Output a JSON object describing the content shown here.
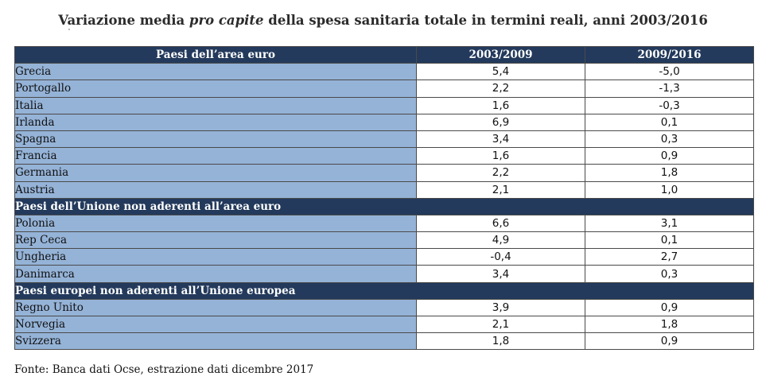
{
  "title": {
    "part1": "Variazione media ",
    "italic": "pro capite",
    "part2": " della spesa sanitaria totale in termini reali, anni 2003/2016"
  },
  "header": {
    "col1": "Paesi dell’area euro",
    "col2": "2003/2009",
    "col3": "2009/2016"
  },
  "groups": [
    {
      "label": "",
      "rows": [
        {
          "country": "Grecia",
          "v1": "5,4",
          "v2": "-5,0"
        },
        {
          "country": "Portogallo",
          "v1": "2,2",
          "v2": "-1,3"
        },
        {
          "country": "Italia",
          "v1": "1,6",
          "v2": "-0,3"
        },
        {
          "country": "Irlanda",
          "v1": "6,9",
          "v2": "0,1"
        },
        {
          "country": "Spagna",
          "v1": "3,4",
          "v2": "0,3"
        },
        {
          "country": "Francia",
          "v1": "1,6",
          "v2": "0,9"
        },
        {
          "country": "Germania",
          "v1": "2,2",
          "v2": "1,8"
        },
        {
          "country": "Austria",
          "v1": "2,1",
          "v2": "1,0"
        }
      ]
    },
    {
      "label": "Paesi dell’Unione non aderenti all’area euro",
      "rows": [
        {
          "country": "Polonia",
          "v1": "6,6",
          "v2": "3,1"
        },
        {
          "country": "Rep Ceca",
          "v1": "4,9",
          "v2": "0,1"
        },
        {
          "country": "Ungheria",
          "v1": "-0,4",
          "v2": "2,7"
        },
        {
          "country": "Danimarca",
          "v1": "3,4",
          "v2": "0,3"
        }
      ]
    },
    {
      "label": "Paesi europei non aderenti all’Unione europea",
      "rows": [
        {
          "country": "Regno Unito",
          "v1": "3,9",
          "v2": "0,9"
        },
        {
          "country": "Norvegia",
          "v1": "2,1",
          "v2": "1,8"
        },
        {
          "country": "Svizzera",
          "v1": "1,8",
          "v2": "0,9"
        }
      ]
    }
  ],
  "source": "Fonte: Banca dati Ocse, estrazione dati dicembre 2017",
  "colors": {
    "header_bg": "#233a5c",
    "country_bg": "#95b3d7",
    "value_bg": "#ffffff"
  }
}
